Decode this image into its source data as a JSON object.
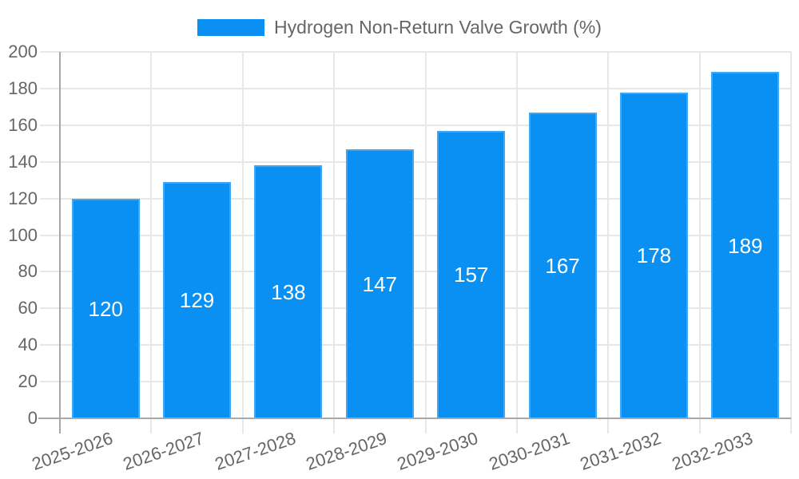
{
  "chart_data": {
    "type": "bar",
    "title": "",
    "legend_label": "Hydrogen Non-Return Valve Growth (%)",
    "categories": [
      "2025-2026",
      "2026-2027",
      "2027-2028",
      "2028-2029",
      "2029-2030",
      "2030-2031",
      "2031-2032",
      "2032-2033"
    ],
    "values": [
      120,
      129,
      138,
      147,
      157,
      167,
      178,
      189
    ],
    "xlabel": "",
    "ylabel": "",
    "ylim": [
      0,
      200
    ],
    "ytick_step": 20,
    "yticks": [
      0,
      20,
      40,
      60,
      80,
      100,
      120,
      140,
      160,
      180,
      200
    ],
    "grid": true,
    "legend_position": "top",
    "bar_value_labels_visible": true,
    "colors": {
      "bar": "#0a90f2",
      "bar_value_label": "#ffffff",
      "axis_text": "#666666",
      "gridline": "#e7e7e7",
      "axis_line": "#a8a8a8",
      "background": "#ffffff"
    }
  }
}
